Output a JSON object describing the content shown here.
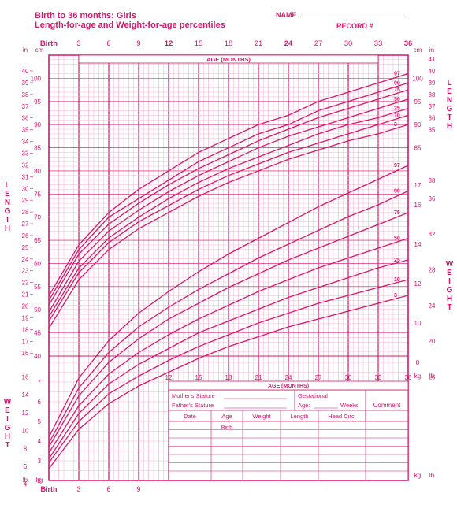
{
  "header": {
    "title1": "Birth to 36 months: Girls",
    "title2": "Length-for-age and Weight-for-age percentiles",
    "name_label": "NAME",
    "record_label": "RECORD #"
  },
  "axes": {
    "months_label": "AGE (MONTHS)",
    "months_ticks": [
      "Birth",
      "3",
      "6",
      "9",
      "12",
      "15",
      "18",
      "21",
      "24",
      "27",
      "30",
      "33",
      "36"
    ],
    "birth_label": "Birth",
    "left_label_length": "LENGTH",
    "right_label_length": "LENGTH",
    "left_label_weight": "WEIGHT",
    "right_label_weight": "WEIGHT",
    "length_in_ticks": [
      15,
      16,
      17,
      18,
      19,
      20,
      21,
      22,
      23,
      24,
      25,
      26,
      27,
      28,
      29,
      30,
      31,
      32,
      33,
      34,
      35,
      36,
      37,
      38,
      39,
      40,
      41
    ],
    "length_cm_ticks": [
      40,
      45,
      50,
      55,
      60,
      65,
      70,
      75,
      80,
      85,
      90,
      95,
      100
    ],
    "length_in_unit": "in",
    "length_cm_unit": "cm",
    "weight_lb_ticks_left": [
      4,
      6,
      8,
      10,
      12,
      14,
      16
    ],
    "weight_kg_ticks_left": [
      2,
      3,
      4,
      5,
      6,
      7
    ],
    "weight_lb_unit": "lb",
    "weight_kg_unit": "kg",
    "right_weight_kg": [
      8,
      10,
      12,
      14,
      16,
      17
    ],
    "right_weight_lb": [
      16,
      20,
      24,
      28,
      32,
      36,
      38
    ],
    "right_length_cm": [
      85,
      90,
      95,
      100
    ],
    "right_length_in": [
      35,
      36,
      37,
      38,
      39,
      40,
      41
    ],
    "percentile_labels": [
      "97",
      "90",
      "75",
      "50",
      "25",
      "10",
      "3"
    ]
  },
  "chart": {
    "type": "growth-chart",
    "curves_color": "#d6176b",
    "grid_minor_color": "#f6b3cf",
    "grid_major_color": "#d6176b",
    "background_color": "#ffffff",
    "length_percentiles": [
      {
        "p": "97",
        "pts": [
          [
            0,
            53
          ],
          [
            3,
            64
          ],
          [
            6,
            71
          ],
          [
            9,
            76
          ],
          [
            12,
            80
          ],
          [
            15,
            84
          ],
          [
            18,
            87
          ],
          [
            21,
            90
          ],
          [
            24,
            92
          ],
          [
            27,
            95
          ],
          [
            30,
            97
          ],
          [
            33,
            99
          ],
          [
            36,
            101
          ]
        ]
      },
      {
        "p": "90",
        "pts": [
          [
            0,
            52
          ],
          [
            3,
            63
          ],
          [
            6,
            70
          ],
          [
            9,
            74
          ],
          [
            12,
            78
          ],
          [
            15,
            82
          ],
          [
            18,
            85
          ],
          [
            21,
            88
          ],
          [
            24,
            90
          ],
          [
            27,
            93
          ],
          [
            30,
            95
          ],
          [
            33,
            97
          ],
          [
            36,
            99
          ]
        ]
      },
      {
        "p": "75",
        "pts": [
          [
            0,
            51
          ],
          [
            3,
            62
          ],
          [
            6,
            68.5
          ],
          [
            9,
            73
          ],
          [
            12,
            77
          ],
          [
            15,
            80.5
          ],
          [
            18,
            83.5
          ],
          [
            21,
            86.5
          ],
          [
            24,
            89
          ],
          [
            27,
            91.5
          ],
          [
            30,
            93.5
          ],
          [
            33,
            95.5
          ],
          [
            36,
            97.5
          ]
        ]
      },
      {
        "p": "50",
        "pts": [
          [
            0,
            49.5
          ],
          [
            3,
            60.5
          ],
          [
            6,
            67
          ],
          [
            9,
            71.5
          ],
          [
            12,
            75.5
          ],
          [
            15,
            79
          ],
          [
            18,
            82
          ],
          [
            21,
            85
          ],
          [
            24,
            87.5
          ],
          [
            27,
            89.5
          ],
          [
            30,
            91.5
          ],
          [
            33,
            93.5
          ],
          [
            36,
            95.5
          ]
        ]
      },
      {
        "p": "25",
        "pts": [
          [
            0,
            48.5
          ],
          [
            3,
            59
          ],
          [
            6,
            65.5
          ],
          [
            9,
            70
          ],
          [
            12,
            74
          ],
          [
            15,
            77.5
          ],
          [
            18,
            80.5
          ],
          [
            21,
            83
          ],
          [
            24,
            85.5
          ],
          [
            27,
            88
          ],
          [
            30,
            90
          ],
          [
            33,
            91.5
          ],
          [
            36,
            93.5
          ]
        ]
      },
      {
        "p": "10",
        "pts": [
          [
            0,
            47.5
          ],
          [
            3,
            58
          ],
          [
            6,
            64.5
          ],
          [
            9,
            69
          ],
          [
            12,
            72.5
          ],
          [
            15,
            76
          ],
          [
            18,
            79
          ],
          [
            21,
            81.5
          ],
          [
            24,
            84
          ],
          [
            27,
            86
          ],
          [
            30,
            88
          ],
          [
            33,
            90
          ],
          [
            36,
            92
          ]
        ]
      },
      {
        "p": "3",
        "pts": [
          [
            0,
            46
          ],
          [
            3,
            56.5
          ],
          [
            6,
            63
          ],
          [
            9,
            67.5
          ],
          [
            12,
            71
          ],
          [
            15,
            74.5
          ],
          [
            18,
            77.5
          ],
          [
            21,
            80
          ],
          [
            24,
            82.5
          ],
          [
            27,
            84.5
          ],
          [
            30,
            86.5
          ],
          [
            33,
            88
          ],
          [
            36,
            90
          ]
        ]
      }
    ],
    "weight_percentiles": [
      {
        "p": "97",
        "pts": [
          [
            0,
            4.2
          ],
          [
            3,
            7.2
          ],
          [
            6,
            9.1
          ],
          [
            9,
            10.5
          ],
          [
            12,
            11.6
          ],
          [
            15,
            12.6
          ],
          [
            18,
            13.5
          ],
          [
            21,
            14.3
          ],
          [
            24,
            15.1
          ],
          [
            27,
            15.9
          ],
          [
            30,
            16.6
          ],
          [
            33,
            17.3
          ],
          [
            36,
            18.0
          ]
        ]
      },
      {
        "p": "90",
        "pts": [
          [
            0,
            3.9
          ],
          [
            3,
            6.7
          ],
          [
            6,
            8.5
          ],
          [
            9,
            9.8
          ],
          [
            12,
            10.8
          ],
          [
            15,
            11.7
          ],
          [
            18,
            12.5
          ],
          [
            21,
            13.3
          ],
          [
            24,
            14.0
          ],
          [
            27,
            14.7
          ],
          [
            30,
            15.4
          ],
          [
            33,
            16.0
          ],
          [
            36,
            16.7
          ]
        ]
      },
      {
        "p": "75",
        "pts": [
          [
            0,
            3.7
          ],
          [
            3,
            6.3
          ],
          [
            6,
            8.0
          ],
          [
            9,
            9.2
          ],
          [
            12,
            10.2
          ],
          [
            15,
            11.0
          ],
          [
            18,
            11.8
          ],
          [
            21,
            12.5
          ],
          [
            24,
            13.2
          ],
          [
            27,
            13.8
          ],
          [
            30,
            14.4
          ],
          [
            33,
            15.0
          ],
          [
            36,
            15.6
          ]
        ]
      },
      {
        "p": "50",
        "pts": [
          [
            0,
            3.4
          ],
          [
            3,
            5.8
          ],
          [
            6,
            7.4
          ],
          [
            9,
            8.5
          ],
          [
            12,
            9.4
          ],
          [
            15,
            10.2
          ],
          [
            18,
            10.9
          ],
          [
            21,
            11.6
          ],
          [
            24,
            12.2
          ],
          [
            27,
            12.8
          ],
          [
            30,
            13.3
          ],
          [
            33,
            13.8
          ],
          [
            36,
            14.3
          ]
        ]
      },
      {
        "p": "25",
        "pts": [
          [
            0,
            3.1
          ],
          [
            3,
            5.4
          ],
          [
            6,
            6.9
          ],
          [
            9,
            7.9
          ],
          [
            12,
            8.7
          ],
          [
            15,
            9.5
          ],
          [
            18,
            10.1
          ],
          [
            21,
            10.7
          ],
          [
            24,
            11.3
          ],
          [
            27,
            11.8
          ],
          [
            30,
            12.3
          ],
          [
            33,
            12.8
          ],
          [
            36,
            13.2
          ]
        ]
      },
      {
        "p": "10",
        "pts": [
          [
            0,
            2.9
          ],
          [
            3,
            5.0
          ],
          [
            6,
            6.4
          ],
          [
            9,
            7.3
          ],
          [
            12,
            8.1
          ],
          [
            15,
            8.8
          ],
          [
            18,
            9.4
          ],
          [
            21,
            10.0
          ],
          [
            24,
            10.5
          ],
          [
            27,
            11.0
          ],
          [
            30,
            11.4
          ],
          [
            33,
            11.8
          ],
          [
            36,
            12.2
          ]
        ]
      },
      {
        "p": "3",
        "pts": [
          [
            0,
            2.6
          ],
          [
            3,
            4.6
          ],
          [
            6,
            5.9
          ],
          [
            9,
            6.8
          ],
          [
            12,
            7.5
          ],
          [
            15,
            8.2
          ],
          [
            18,
            8.8
          ],
          [
            21,
            9.3
          ],
          [
            24,
            9.8
          ],
          [
            27,
            10.2
          ],
          [
            30,
            10.6
          ],
          [
            33,
            11.0
          ],
          [
            36,
            11.4
          ]
        ]
      }
    ]
  },
  "info_box": {
    "mother": "Mother's Stature",
    "father": "Father's Stature",
    "cols": [
      "Date",
      "Age",
      "Weight",
      "Length",
      "Head Circ."
    ],
    "birth_row_label": "Birth",
    "gest_label": "Gestational",
    "age_label": "Age:",
    "weeks_label": "Weeks",
    "comment_label": "Comment",
    "age_months_repeat": "AGE (MONTHS)",
    "months_lower": [
      "12",
      "15",
      "18",
      "21",
      "24",
      "27",
      "30",
      "33",
      "36"
    ]
  }
}
